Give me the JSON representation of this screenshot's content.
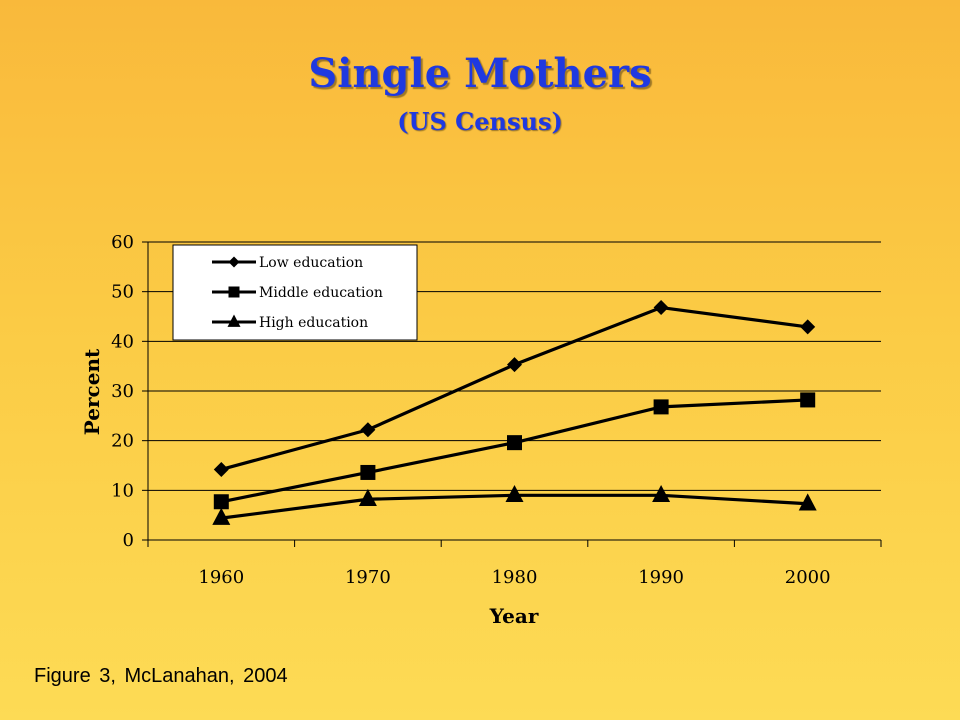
{
  "slide": {
    "title": "Single Mothers",
    "subtitle": "(US Census)",
    "caption": "Figure 3, McLanahan, 2004"
  },
  "colors": {
    "title_blue": "#1F39E0",
    "background_top": "#F9B93B",
    "background_bottom": "#FDDB55",
    "series": "#000000"
  },
  "chart_data": {
    "type": "line",
    "xlabel": "Year",
    "ylabel": "Percent",
    "categories": [
      "1960",
      "1970",
      "1980",
      "1990",
      "2000"
    ],
    "ylim": [
      0,
      60
    ],
    "yticks": [
      0,
      10,
      20,
      30,
      40,
      50,
      60
    ],
    "grid": "horizontal",
    "legend_position": "top-left",
    "series": [
      {
        "name": "Low education",
        "marker": "diamond",
        "values": [
          14.2,
          22.2,
          35.3,
          46.8,
          42.9
        ]
      },
      {
        "name": "Middle education",
        "marker": "square",
        "values": [
          7.7,
          13.6,
          19.6,
          26.8,
          28.2
        ]
      },
      {
        "name": "High education",
        "marker": "triangle",
        "values": [
          4.4,
          8.2,
          9.0,
          9.0,
          7.3
        ]
      }
    ]
  }
}
